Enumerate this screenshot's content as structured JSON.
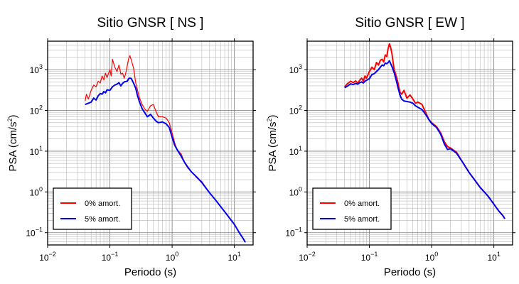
{
  "chart_data": [
    {
      "type": "line",
      "title": "Sitio GNSR [ NS ]",
      "xlabel": "Periodo (s)",
      "ylabel_main": "PSA (cm/s",
      "ylabel_sup": "2",
      "ylabel_end": ")",
      "xscale": "log",
      "yscale": "log",
      "xlim": [
        0.01,
        20
      ],
      "ylim": [
        0.05,
        5000
      ],
      "grid": true,
      "legend_position": "bottom-left",
      "xticks": [
        {
          "value": 0.01,
          "base": "10",
          "exp": "−2"
        },
        {
          "value": 0.1,
          "base": "10",
          "exp": "−1"
        },
        {
          "value": 1,
          "base": "10",
          "exp": "0"
        },
        {
          "value": 10,
          "base": "10",
          "exp": "1"
        }
      ],
      "yticks": [
        {
          "value": 0.1,
          "base": "10",
          "exp": "−1"
        },
        {
          "value": 1,
          "base": "10",
          "exp": "0"
        },
        {
          "value": 10,
          "base": "10",
          "exp": "1"
        },
        {
          "value": 100,
          "base": "10",
          "exp": "2"
        },
        {
          "value": 1000,
          "base": "10",
          "exp": "3"
        }
      ],
      "series": [
        {
          "name": "0% amort.",
          "color": "#ff0000",
          "width": 1.2,
          "points": [
            [
              0.04,
              170
            ],
            [
              0.042,
              250
            ],
            [
              0.045,
              190
            ],
            [
              0.05,
              310
            ],
            [
              0.055,
              420
            ],
            [
              0.06,
              380
            ],
            [
              0.065,
              520
            ],
            [
              0.07,
              470
            ],
            [
              0.075,
              700
            ],
            [
              0.08,
              560
            ],
            [
              0.085,
              820
            ],
            [
              0.09,
              640
            ],
            [
              0.1,
              1000
            ],
            [
              0.105,
              700
            ],
            [
              0.11,
              1800
            ],
            [
              0.12,
              1150
            ],
            [
              0.13,
              900
            ],
            [
              0.14,
              1300
            ],
            [
              0.15,
              780
            ],
            [
              0.16,
              820
            ],
            [
              0.17,
              620
            ],
            [
              0.18,
              820
            ],
            [
              0.19,
              1250
            ],
            [
              0.2,
              1850
            ],
            [
              0.21,
              2200
            ],
            [
              0.22,
              1750
            ],
            [
              0.24,
              1100
            ],
            [
              0.26,
              480
            ],
            [
              0.28,
              300
            ],
            [
              0.3,
              200
            ],
            [
              0.33,
              140
            ],
            [
              0.36,
              110
            ],
            [
              0.4,
              95
            ],
            [
              0.45,
              130
            ],
            [
              0.5,
              140
            ],
            [
              0.55,
              95
            ],
            [
              0.6,
              70
            ],
            [
              0.7,
              70
            ],
            [
              0.8,
              65
            ],
            [
              0.9,
              50
            ],
            [
              1.0,
              28
            ],
            [
              1.1,
              16
            ],
            [
              1.2,
              11
            ],
            [
              1.4,
              8.5
            ],
            [
              1.6,
              5
            ],
            [
              1.8,
              3.8
            ],
            [
              2,
              3.3
            ],
            [
              2.5,
              2.2
            ],
            [
              3,
              1.8
            ],
            [
              4,
              0.95
            ],
            [
              5,
              0.63
            ],
            [
              6,
              0.44
            ],
            [
              8,
              0.25
            ],
            [
              10,
              0.16
            ],
            [
              12,
              0.1
            ],
            [
              14,
              0.07
            ],
            [
              15,
              0.058
            ]
          ]
        },
        {
          "name": "5% amort.",
          "color": "#0000ee",
          "width": 2,
          "points": [
            [
              0.04,
              140
            ],
            [
              0.045,
              150
            ],
            [
              0.05,
              160
            ],
            [
              0.055,
              200
            ],
            [
              0.06,
              180
            ],
            [
              0.065,
              230
            ],
            [
              0.07,
              260
            ],
            [
              0.075,
              250
            ],
            [
              0.08,
              290
            ],
            [
              0.085,
              270
            ],
            [
              0.09,
              320
            ],
            [
              0.1,
              310
            ],
            [
              0.11,
              380
            ],
            [
              0.12,
              420
            ],
            [
              0.13,
              440
            ],
            [
              0.14,
              480
            ],
            [
              0.15,
              400
            ],
            [
              0.16,
              460
            ],
            [
              0.17,
              500
            ],
            [
              0.18,
              510
            ],
            [
              0.19,
              520
            ],
            [
              0.2,
              600
            ],
            [
              0.21,
              620
            ],
            [
              0.22,
              610
            ],
            [
              0.24,
              470
            ],
            [
              0.26,
              350
            ],
            [
              0.28,
              220
            ],
            [
              0.3,
              160
            ],
            [
              0.33,
              110
            ],
            [
              0.36,
              90
            ],
            [
              0.4,
              70
            ],
            [
              0.45,
              80
            ],
            [
              0.5,
              65
            ],
            [
              0.55,
              55
            ],
            [
              0.6,
              50
            ],
            [
              0.7,
              52
            ],
            [
              0.8,
              47
            ],
            [
              0.9,
              38
            ],
            [
              1.0,
              22
            ],
            [
              1.1,
              14
            ],
            [
              1.2,
              11
            ],
            [
              1.4,
              7.5
            ],
            [
              1.6,
              5.2
            ],
            [
              1.8,
              4
            ],
            [
              2,
              3.2
            ],
            [
              2.5,
              2.3
            ],
            [
              3,
              1.7
            ],
            [
              4,
              0.95
            ],
            [
              5,
              0.63
            ],
            [
              6,
              0.44
            ],
            [
              8,
              0.25
            ],
            [
              10,
              0.16
            ],
            [
              12,
              0.1
            ],
            [
              14,
              0.07
            ],
            [
              15,
              0.058
            ]
          ]
        }
      ]
    },
    {
      "type": "line",
      "title": "Sitio GNSR [ EW ]",
      "xlabel": "Periodo (s)",
      "ylabel_main": "PSA (cm/s",
      "ylabel_sup": "2",
      "ylabel_end": ")",
      "xscale": "log",
      "yscale": "log",
      "xlim": [
        0.01,
        20
      ],
      "ylim": [
        0.05,
        5000
      ],
      "grid": true,
      "legend_position": "bottom-left",
      "xticks": [
        {
          "value": 0.01,
          "base": "10",
          "exp": "−2"
        },
        {
          "value": 0.1,
          "base": "10",
          "exp": "−1"
        },
        {
          "value": 1,
          "base": "10",
          "exp": "0"
        },
        {
          "value": 10,
          "base": "10",
          "exp": "1"
        }
      ],
      "yticks": [
        {
          "value": 0.1,
          "base": "10",
          "exp": "−1"
        },
        {
          "value": 1,
          "base": "10",
          "exp": "0"
        },
        {
          "value": 10,
          "base": "10",
          "exp": "1"
        },
        {
          "value": 100,
          "base": "10",
          "exp": "2"
        },
        {
          "value": 1000,
          "base": "10",
          "exp": "3"
        }
      ],
      "series": [
        {
          "name": "0% amort.",
          "color": "#ff0000",
          "width": 2,
          "points": [
            [
              0.04,
              380
            ],
            [
              0.045,
              460
            ],
            [
              0.05,
              520
            ],
            [
              0.055,
              480
            ],
            [
              0.06,
              530
            ],
            [
              0.065,
              470
            ],
            [
              0.07,
              550
            ],
            [
              0.075,
              620
            ],
            [
              0.08,
              520
            ],
            [
              0.085,
              700
            ],
            [
              0.09,
              620
            ],
            [
              0.1,
              900
            ],
            [
              0.11,
              1150
            ],
            [
              0.12,
              1000
            ],
            [
              0.13,
              1500
            ],
            [
              0.14,
              1300
            ],
            [
              0.15,
              1700
            ],
            [
              0.16,
              1800
            ],
            [
              0.17,
              1550
            ],
            [
              0.18,
              2300
            ],
            [
              0.19,
              2100
            ],
            [
              0.2,
              3300
            ],
            [
              0.21,
              4300
            ],
            [
              0.22,
              3500
            ],
            [
              0.23,
              2500
            ],
            [
              0.25,
              1000
            ],
            [
              0.27,
              700
            ],
            [
              0.29,
              450
            ],
            [
              0.31,
              280
            ],
            [
              0.33,
              250
            ],
            [
              0.36,
              310
            ],
            [
              0.4,
              200
            ],
            [
              0.45,
              240
            ],
            [
              0.5,
              190
            ],
            [
              0.55,
              150
            ],
            [
              0.6,
              160
            ],
            [
              0.7,
              140
            ],
            [
              0.8,
              90
            ],
            [
              0.9,
              60
            ],
            [
              1.0,
              50
            ],
            [
              1.2,
              40
            ],
            [
              1.4,
              28
            ],
            [
              1.6,
              17
            ],
            [
              1.8,
              13
            ],
            [
              2,
              12
            ],
            [
              2.5,
              9.5
            ],
            [
              3,
              6
            ],
            [
              4,
              3
            ],
            [
              5,
              1.9
            ],
            [
              6,
              1.3
            ],
            [
              8,
              0.8
            ],
            [
              10,
              0.5
            ],
            [
              12,
              0.34
            ],
            [
              14,
              0.26
            ],
            [
              15,
              0.22
            ]
          ]
        },
        {
          "name": "5% amort.",
          "color": "#0000ee",
          "width": 2,
          "points": [
            [
              0.04,
              360
            ],
            [
              0.045,
              400
            ],
            [
              0.05,
              450
            ],
            [
              0.055,
              430
            ],
            [
              0.06,
              460
            ],
            [
              0.065,
              440
            ],
            [
              0.07,
              480
            ],
            [
              0.075,
              500
            ],
            [
              0.08,
              470
            ],
            [
              0.085,
              520
            ],
            [
              0.09,
              550
            ],
            [
              0.1,
              600
            ],
            [
              0.11,
              760
            ],
            [
              0.12,
              800
            ],
            [
              0.13,
              900
            ],
            [
              0.14,
              1000
            ],
            [
              0.15,
              1150
            ],
            [
              0.16,
              1300
            ],
            [
              0.17,
              1250
            ],
            [
              0.18,
              1450
            ],
            [
              0.19,
              1400
            ],
            [
              0.2,
              1500
            ],
            [
              0.21,
              1650
            ],
            [
              0.22,
              1400
            ],
            [
              0.23,
              1200
            ],
            [
              0.25,
              850
            ],
            [
              0.27,
              550
            ],
            [
              0.29,
              350
            ],
            [
              0.31,
              240
            ],
            [
              0.33,
              190
            ],
            [
              0.36,
              170
            ],
            [
              0.4,
              165
            ],
            [
              0.45,
              160
            ],
            [
              0.5,
              150
            ],
            [
              0.55,
              130
            ],
            [
              0.6,
              120
            ],
            [
              0.7,
              105
            ],
            [
              0.8,
              80
            ],
            [
              0.9,
              60
            ],
            [
              1.0,
              48
            ],
            [
              1.2,
              38
            ],
            [
              1.4,
              26
            ],
            [
              1.6,
              15
            ],
            [
              1.8,
              11
            ],
            [
              2,
              11.5
            ],
            [
              2.5,
              9
            ],
            [
              3,
              6
            ],
            [
              4,
              3
            ],
            [
              5,
              1.9
            ],
            [
              6,
              1.3
            ],
            [
              8,
              0.8
            ],
            [
              10,
              0.5
            ],
            [
              12,
              0.34
            ],
            [
              14,
              0.26
            ],
            [
              15,
              0.22
            ]
          ]
        }
      ]
    }
  ]
}
